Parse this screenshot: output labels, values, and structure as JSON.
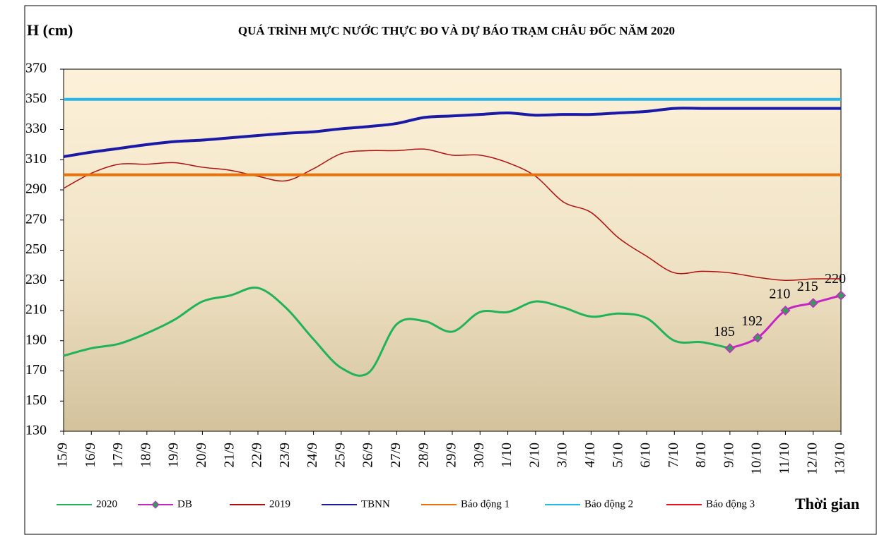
{
  "chart_data": {
    "type": "line",
    "title": "QUÁ TRÌNH MỰC NƯỚC THỰC ĐO VÀ DỰ BÁO TRẠM CHÂU ĐỐC NĂM 2020",
    "y_label": "H (cm)",
    "x_label": "Thời gian",
    "categories": [
      "15/9",
      "16/9",
      "17/9",
      "18/9",
      "19/9",
      "20/9",
      "21/9",
      "22/9",
      "23/9",
      "24/9",
      "25/9",
      "26/9",
      "27/9",
      "28/9",
      "29/9",
      "30/9",
      "1/10",
      "2/10",
      "3/10",
      "4/10",
      "5/10",
      "6/10",
      "7/10",
      "8/10",
      "9/10",
      "10/10",
      "11/10",
      "12/10",
      "13/10"
    ],
    "ylim": [
      130,
      370
    ],
    "yticks": [
      130,
      150,
      170,
      190,
      210,
      230,
      250,
      270,
      290,
      310,
      330,
      350,
      370
    ],
    "grid": false,
    "series": [
      {
        "name": "2020",
        "color": "#22b35a",
        "width": 3,
        "values": [
          180,
          185,
          188,
          195,
          204,
          216,
          220,
          225,
          212,
          191,
          172,
          169,
          201,
          203,
          196,
          209,
          209,
          216,
          212,
          206,
          208,
          205,
          190,
          189,
          185,
          null,
          null,
          null,
          null
        ]
      },
      {
        "name": "DB",
        "color": "#c724c7",
        "width": 3,
        "marker": "diamond",
        "show_labels": true,
        "values": [
          null,
          null,
          null,
          null,
          null,
          null,
          null,
          null,
          null,
          null,
          null,
          null,
          null,
          null,
          null,
          null,
          null,
          null,
          null,
          null,
          null,
          null,
          null,
          null,
          185,
          192,
          210,
          215,
          220
        ]
      },
      {
        "name": "2019",
        "color": "#b01010",
        "width": 1.5,
        "values": [
          291,
          301,
          307,
          307,
          308,
          305,
          303,
          299,
          296,
          304,
          314,
          316,
          316,
          317,
          313,
          313,
          308,
          299,
          282,
          275,
          258,
          246,
          235,
          236,
          235,
          232,
          230,
          231,
          231
        ]
      },
      {
        "name": "TBNN",
        "color": "#1a1aa6",
        "width": 4,
        "values": [
          312,
          315,
          317.5,
          320,
          322,
          323,
          324.5,
          326,
          327.5,
          328.5,
          330.5,
          332,
          334,
          338,
          339,
          340,
          341,
          339.5,
          340,
          340,
          341,
          342,
          344,
          344,
          344,
          344,
          344,
          344,
          344
        ]
      },
      {
        "name": "Báo động 1",
        "color": "#e8720c",
        "width": 4,
        "values": [
          300,
          300,
          300,
          300,
          300,
          300,
          300,
          300,
          300,
          300,
          300,
          300,
          300,
          300,
          300,
          300,
          300,
          300,
          300,
          300,
          300,
          300,
          300,
          300,
          300,
          300,
          300,
          300,
          300
        ]
      },
      {
        "name": "Báo động 2",
        "color": "#27b5ee",
        "width": 4,
        "values": [
          350,
          350,
          350,
          350,
          350,
          350,
          350,
          350,
          350,
          350,
          350,
          350,
          350,
          350,
          350,
          350,
          350,
          350,
          350,
          350,
          350,
          350,
          350,
          350,
          350,
          350,
          350,
          350,
          350
        ]
      },
      {
        "name": "Báo động 3",
        "color": "#e8141c",
        "width": 2,
        "values": [
          null,
          null,
          null,
          null,
          null,
          null,
          null,
          null,
          null,
          null,
          null,
          null,
          null,
          null,
          null,
          null,
          null,
          null,
          null,
          null,
          null,
          null,
          null,
          null,
          null,
          null,
          null,
          null,
          null
        ]
      }
    ]
  }
}
